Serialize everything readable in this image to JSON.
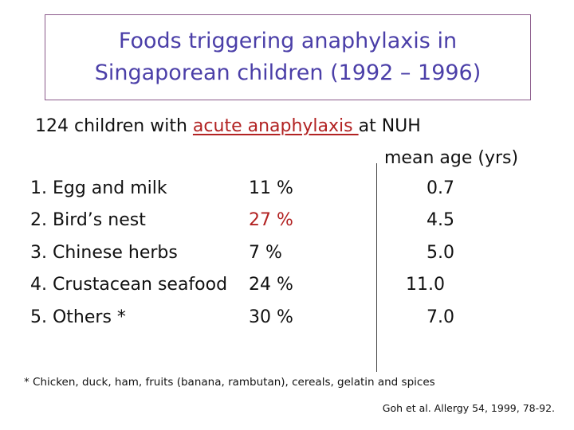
{
  "title": {
    "line1": "Foods triggering anaphylaxis in",
    "line2": "Singaporean children (1992 – 1996)"
  },
  "subtitle": {
    "prefix": "124 children with ",
    "highlight": "acute anaphylaxis ",
    "suffix": "at NUH"
  },
  "table": {
    "age_header": "mean age (yrs)",
    "rows": [
      {
        "name": "1. Egg and milk",
        "pct": "11 %",
        "age": "0.7"
      },
      {
        "name": "2. Bird’s nest",
        "pct": "27 %",
        "age": "4.5"
      },
      {
        "name": "3. Chinese herbs",
        "pct": " 7 %",
        "age": "5.0"
      },
      {
        "name": "4. Crustacean seafood",
        "pct": "24 %",
        "age": "11.0"
      },
      {
        "name": "5. Others *",
        "pct": "30 %",
        "age": "7.0"
      }
    ]
  },
  "footnote": "* Chicken, duck, ham, fruits (banana, rambutan), cereals, gelatin and spices",
  "citation": "Goh et al. Allergy 54, 1999, 78-92.",
  "colors": {
    "title": "#4b3fa8",
    "highlight": "#b22222",
    "border": "#8b5a8b"
  }
}
